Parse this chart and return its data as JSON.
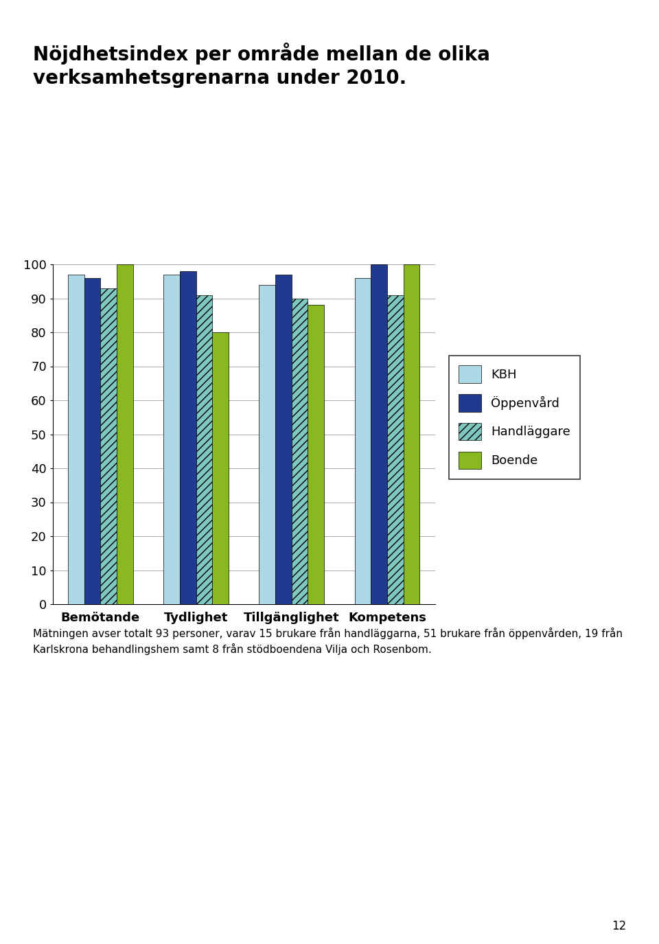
{
  "title": "Nöjdhetsindex per område mellan de olika\nverksamhetsgrenarna under 2010.",
  "categories": [
    "Bemötande",
    "Tydlighet",
    "Tillgänglighet",
    "Kompetens"
  ],
  "series": {
    "KBH": [
      97,
      97,
      94,
      96
    ],
    "Öppenvård": [
      96,
      98,
      97,
      100
    ],
    "Handläggare": [
      93,
      91,
      90,
      91
    ],
    "Boende": [
      100,
      80,
      88,
      100
    ]
  },
  "colors": {
    "KBH": "#add8e6",
    "Öppenvård": "#1f3a8f",
    "Handläggare": "#7ec8c0",
    "Boende": "#8ab820"
  },
  "ylim": [
    0,
    100
  ],
  "yticks": [
    0,
    10,
    20,
    30,
    40,
    50,
    60,
    70,
    80,
    90,
    100
  ],
  "legend_labels": [
    "KBH",
    "Öppenvård",
    "Handläggare",
    "Boende"
  ],
  "footnote": "Mätningen avser totalt 93 personer, varav 15 brukare från handläggarna, 51 brukare från öppenvården, 19 från\nKarlskrona behandlingshem samt 8 från stödboendena Vilja och Rosenbom.",
  "page_number": "12",
  "bar_width": 0.17,
  "title_fontsize": 20,
  "axis_fontsize": 13,
  "legend_fontsize": 13,
  "footnote_fontsize": 11,
  "handlaggare_hatch": "///",
  "chart_bg": "#ffffff",
  "grid_color": "#888888"
}
